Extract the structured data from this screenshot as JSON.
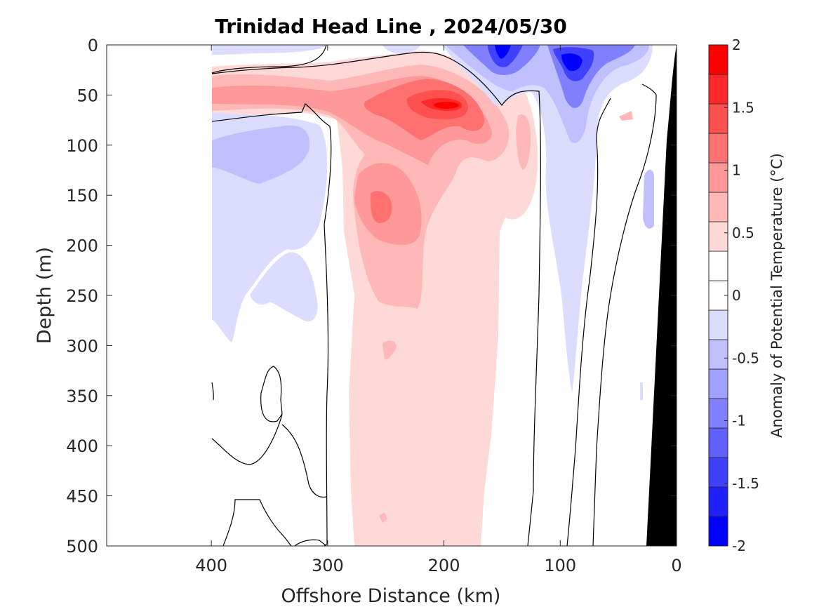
{
  "chart_data": {
    "type": "heatmap",
    "title": "Trinidad Head Line , 2024/05/30",
    "xlabel": "Offshore Distance (km)",
    "ylabel": "Depth (m)",
    "xlim": [
      490,
      0
    ],
    "x_reversed": true,
    "ylim": [
      0,
      500
    ],
    "y_reversed": true,
    "x_ticks": [
      {
        "value": 400,
        "label": "400"
      },
      {
        "value": 300,
        "label": "300"
      },
      {
        "value": 200,
        "label": "200"
      },
      {
        "value": 100,
        "label": "100"
      },
      {
        "value": 0,
        "label": "0"
      }
    ],
    "y_ticks": [
      {
        "value": 0,
        "label": "0"
      },
      {
        "value": 50,
        "label": "50"
      },
      {
        "value": 100,
        "label": "100"
      },
      {
        "value": 150,
        "label": "150"
      },
      {
        "value": 200,
        "label": "200"
      },
      {
        "value": 250,
        "label": "250"
      },
      {
        "value": 300,
        "label": "300"
      },
      {
        "value": 350,
        "label": "350"
      },
      {
        "value": 400,
        "label": "400"
      },
      {
        "value": 450,
        "label": "450"
      },
      {
        "value": 500,
        "label": "500"
      }
    ],
    "grid": false,
    "colorbar": {
      "label": "Anomaly of Potential Temperature (°C)",
      "range": [
        -2,
        2
      ],
      "levels": [
        -2,
        -1.75,
        -1.5,
        -1.25,
        -1,
        -0.75,
        -0.5,
        -0.25,
        0,
        0.25,
        0.5,
        0.75,
        1,
        1.25,
        1.5,
        1.75,
        2
      ],
      "colors": [
        "#0000ff",
        "#2020ff",
        "#4040ff",
        "#6060ff",
        "#8080ff",
        "#a0a0ff",
        "#c0c0ff",
        "#dcdcff",
        "#ffffff",
        "#ffffff",
        "#ffd8d8",
        "#ffb8b8",
        "#ff9898",
        "#ff7070",
        "#ff5050",
        "#ff2828",
        "#ff0000"
      ],
      "ticks": [
        {
          "value": 2,
          "label": "2"
        },
        {
          "value": 1.5,
          "label": "1.5"
        },
        {
          "value": 1,
          "label": "1"
        },
        {
          "value": 0.5,
          "label": "0.5"
        },
        {
          "value": 0,
          "label": "0"
        },
        {
          "value": -0.5,
          "label": "-0.5"
        },
        {
          "value": -1,
          "label": "-1"
        },
        {
          "value": -1.5,
          "label": "-1.5"
        },
        {
          "value": -2,
          "label": "-2"
        }
      ]
    },
    "data_extent_km": [
      0,
      400
    ],
    "features": [
      {
        "kind": "warm_core",
        "center_km": 200,
        "center_depth_m": 60,
        "max_anomaly": 2.0
      },
      {
        "kind": "warm_core",
        "center_km": 253,
        "center_depth_m": 165,
        "max_anomaly": 1.1
      },
      {
        "kind": "warm_layer",
        "x_range_km": [
          170,
          280
        ],
        "depth_range_m": [
          100,
          500
        ],
        "anomaly": 0.3
      },
      {
        "kind": "cold_core",
        "center_km": 150,
        "center_depth_m": 10,
        "min_anomaly": -1.9
      },
      {
        "kind": "cold_core",
        "center_km": 90,
        "center_depth_m": 20,
        "min_anomaly": -1.9
      },
      {
        "kind": "cold_tongue",
        "x_range_km": [
          70,
          110
        ],
        "depth_range_m": [
          0,
          340
        ],
        "anomaly": -0.4
      },
      {
        "kind": "cool_patch",
        "x_range_km": [
          310,
          400
        ],
        "depth_range_m": [
          80,
          300
        ],
        "anomaly": -0.5
      },
      {
        "kind": "bathymetry",
        "shelf_km": [
          0,
          25
        ],
        "depth_range_m": [
          0,
          500
        ]
      }
    ]
  }
}
